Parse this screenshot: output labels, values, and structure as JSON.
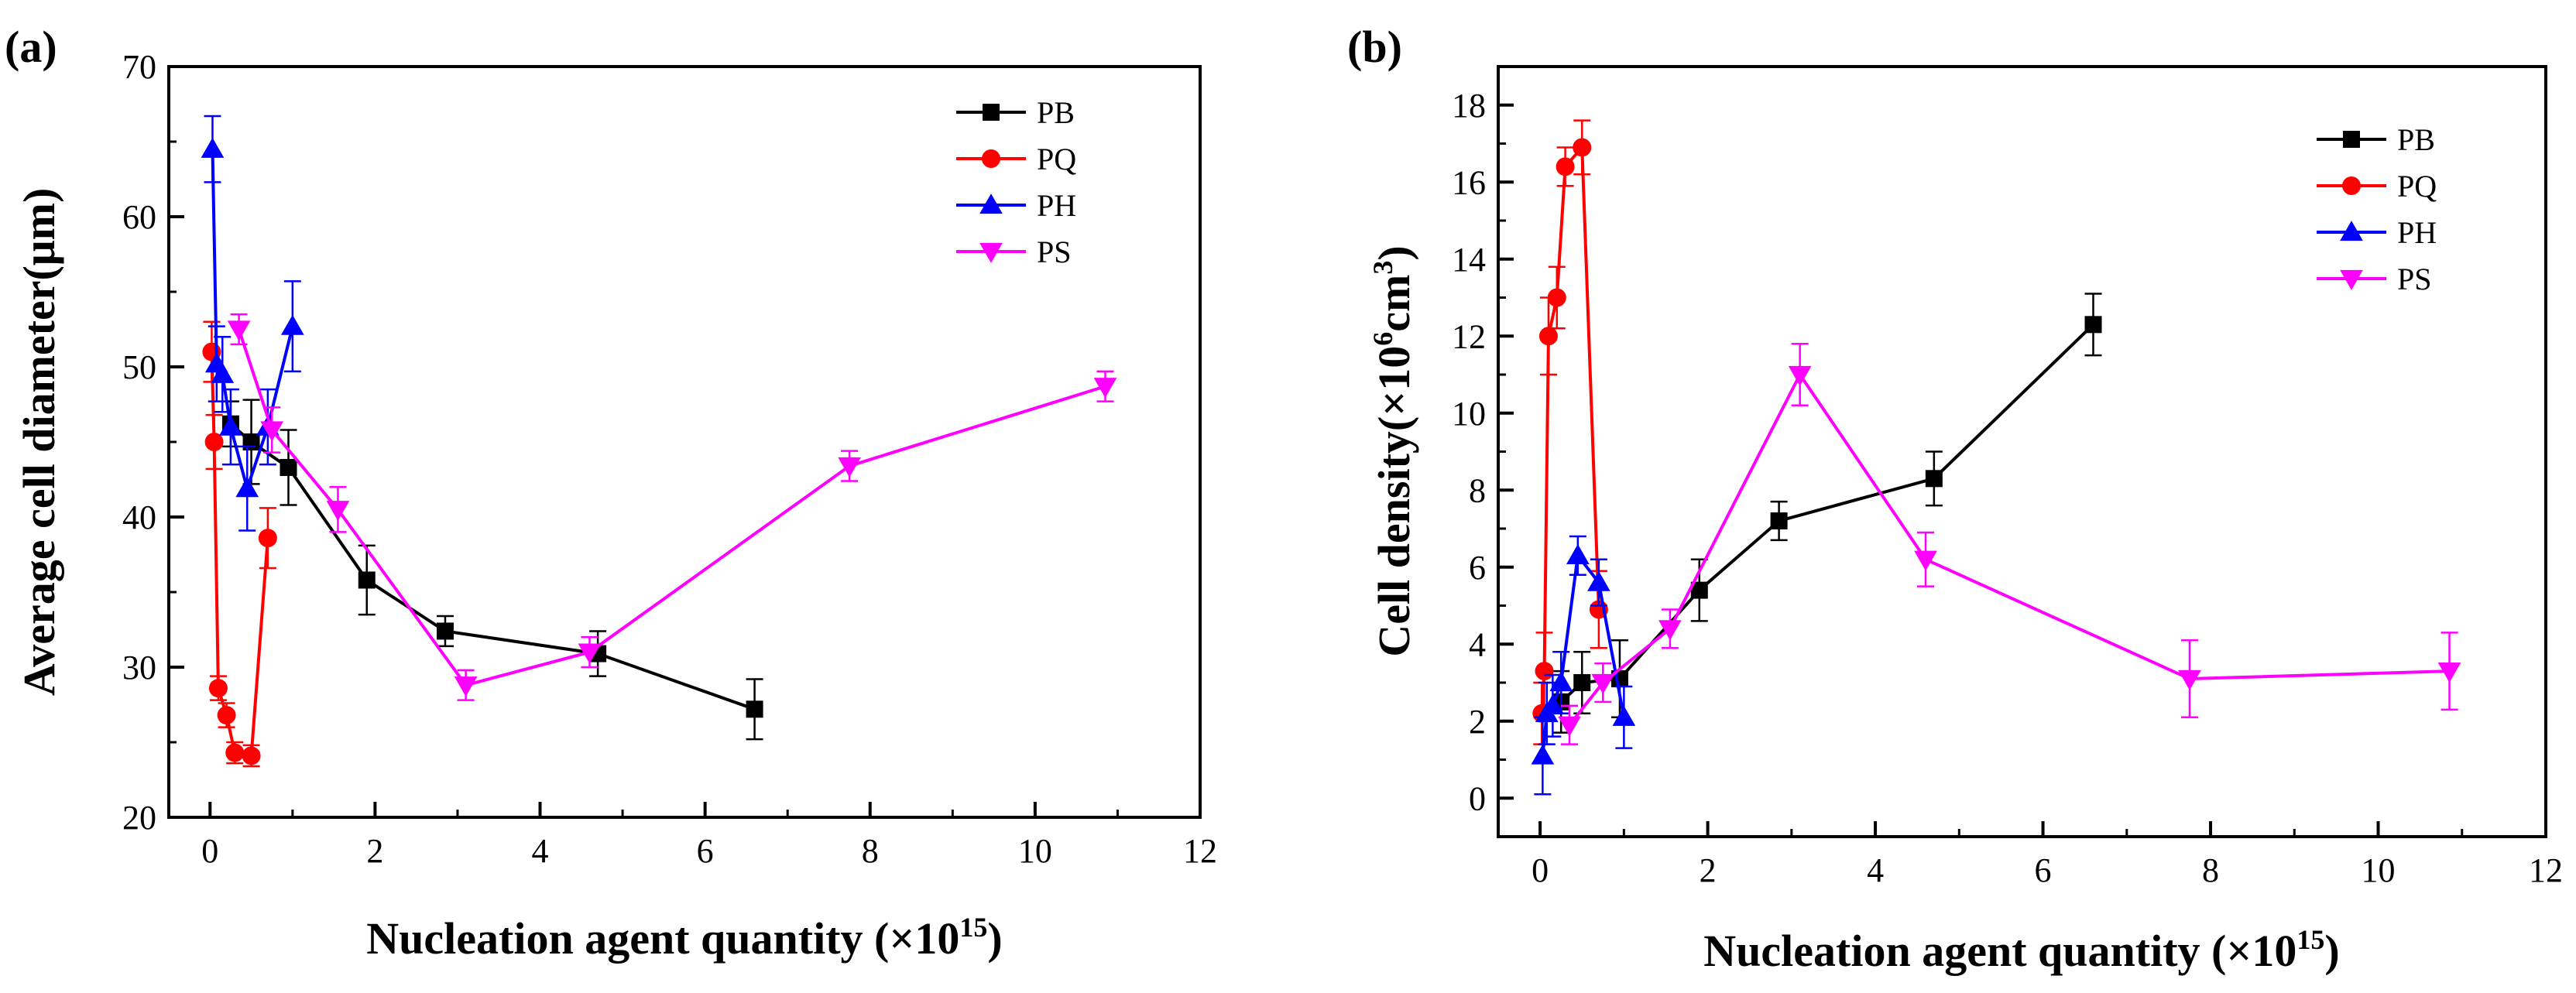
{
  "figure": {
    "colors": {
      "PB": "#000000",
      "PQ": "#ff0000",
      "PH": "#0000ff",
      "PS": "#ff00ff"
    }
  },
  "chart_data": [
    {
      "panel_label": "(a)",
      "type": "line",
      "xlabel": "Nucleation agent quantity (×10",
      "xlabel_sup": "15",
      "xlabel_close": ")",
      "ylabel": "Average cell diameter(μm)",
      "xlim": [
        -0.5,
        12
      ],
      "ylim": [
        20,
        70
      ],
      "x_ticks": [
        0,
        2,
        4,
        6,
        8,
        10,
        12
      ],
      "y_ticks": [
        20,
        30,
        40,
        50,
        60,
        70
      ],
      "legend_position": "top-right",
      "series": [
        {
          "name": "PB",
          "marker": "square",
          "x": [
            0.25,
            0.5,
            0.95,
            1.9,
            2.85,
            4.7,
            6.6
          ],
          "y": [
            46.2,
            45.0,
            43.3,
            35.8,
            32.4,
            30.9,
            27.2
          ],
          "err": [
            1.5,
            2.8,
            2.5,
            2.3,
            1.0,
            1.5,
            2.0
          ]
        },
        {
          "name": "PQ",
          "marker": "circle",
          "x": [
            0.02,
            0.05,
            0.1,
            0.2,
            0.3,
            0.5,
            0.7
          ],
          "y": [
            51.0,
            45.0,
            28.6,
            26.8,
            24.3,
            24.1,
            38.6
          ],
          "err": [
            2.0,
            1.8,
            0.8,
            0.8,
            0.7,
            0.7,
            2.0
          ]
        },
        {
          "name": "PH",
          "marker": "triangle-up",
          "x": [
            0.03,
            0.08,
            0.15,
            0.25,
            0.45,
            0.7,
            1.0
          ],
          "y": [
            64.5,
            50.2,
            49.5,
            46.0,
            41.9,
            46.0,
            52.7
          ],
          "err": [
            2.2,
            2.5,
            2.5,
            2.5,
            2.8,
            2.5,
            3.0
          ]
        },
        {
          "name": "PS",
          "marker": "triangle-down",
          "x": [
            0.35,
            0.75,
            1.55,
            3.1,
            4.6,
            7.75,
            10.85
          ],
          "y": [
            52.5,
            45.8,
            40.5,
            28.8,
            31.0,
            43.4,
            48.7
          ],
          "err": [
            1.0,
            1.5,
            1.5,
            1.0,
            1.0,
            1.0,
            1.0
          ]
        }
      ]
    },
    {
      "panel_label": "(b)",
      "type": "line",
      "xlabel": "Nucleation agent quantity (×10",
      "xlabel_sup": "15",
      "xlabel_close": ")",
      "ylabel": "Cell density(×10",
      "ylabel_sup1": "6",
      "ylabel_mid": "cm",
      "ylabel_sup2": "3",
      "ylabel_close": ")",
      "xlim": [
        -0.5,
        12
      ],
      "ylim": [
        -1,
        19
      ],
      "x_ticks": [
        0,
        2,
        4,
        6,
        8,
        10,
        12
      ],
      "y_ticks": [
        0,
        2,
        4,
        6,
        8,
        10,
        12,
        14,
        16,
        18
      ],
      "legend_position": "top-right",
      "series": [
        {
          "name": "PB",
          "marker": "square",
          "x": [
            0.25,
            0.5,
            0.95,
            1.9,
            2.85,
            4.7,
            6.6
          ],
          "y": [
            2.5,
            3.0,
            3.1,
            5.4,
            7.2,
            8.3,
            12.3
          ],
          "err": [
            0.8,
            0.8,
            1.0,
            0.8,
            0.5,
            0.7,
            0.8
          ]
        },
        {
          "name": "PQ",
          "marker": "circle",
          "x": [
            0.02,
            0.05,
            0.1,
            0.2,
            0.3,
            0.5,
            0.7
          ],
          "y": [
            2.2,
            3.3,
            12.0,
            13.0,
            16.4,
            16.9,
            4.9
          ],
          "err": [
            0.8,
            1.0,
            1.0,
            0.8,
            0.5,
            0.7,
            1.0
          ]
        },
        {
          "name": "PH",
          "marker": "triangle-up",
          "x": [
            0.03,
            0.08,
            0.15,
            0.25,
            0.45,
            0.7,
            1.0
          ],
          "y": [
            1.1,
            2.2,
            2.4,
            3.0,
            6.3,
            5.6,
            2.1
          ],
          "err": [
            1.0,
            0.8,
            0.8,
            0.8,
            0.5,
            0.6,
            0.8
          ]
        },
        {
          "name": "PS",
          "marker": "triangle-down",
          "x": [
            0.35,
            0.75,
            1.55,
            3.1,
            4.6,
            7.75,
            10.85
          ],
          "y": [
            1.9,
            3.0,
            4.4,
            11.0,
            6.2,
            3.1,
            3.3
          ],
          "err": [
            0.5,
            0.5,
            0.5,
            0.8,
            0.7,
            1.0,
            1.0
          ]
        }
      ]
    }
  ]
}
